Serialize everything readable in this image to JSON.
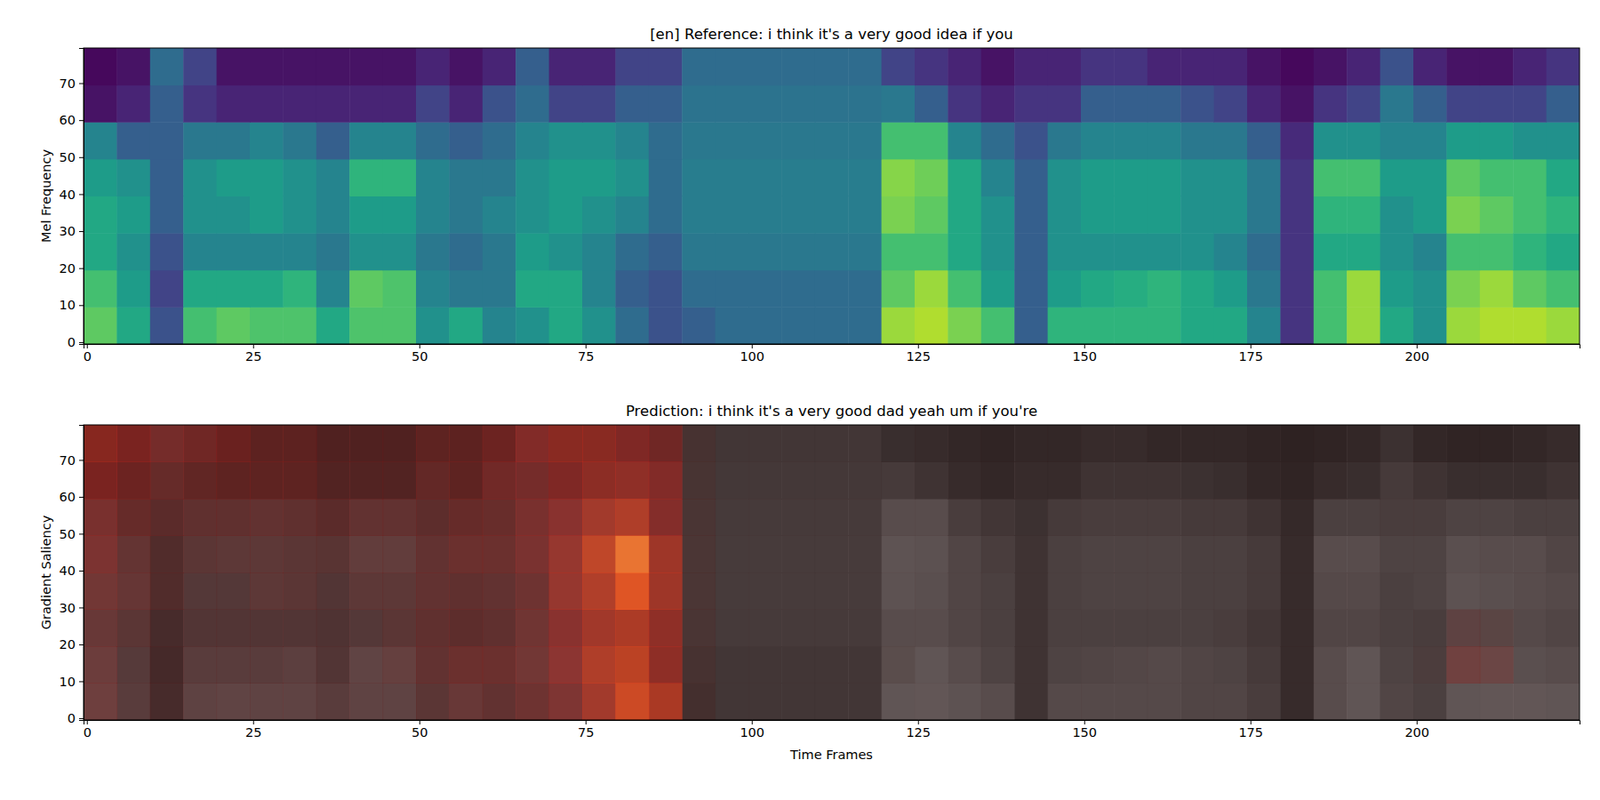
{
  "chart_data": [
    {
      "type": "heatmap",
      "title": "[en] Reference: i think it's a very good idea if you",
      "ylabel": "Mel Frequency",
      "color": "viridis",
      "xlim": [
        -0.5,
        224.5
      ],
      "ylim": [
        -0.5,
        79.5
      ],
      "xticks": [
        0,
        25,
        50,
        75,
        100,
        125,
        150,
        175,
        200
      ],
      "yticks": [
        0,
        10,
        20,
        30,
        40,
        50,
        60,
        70
      ],
      "zlim": [
        0,
        1
      ],
      "x_edges": [
        -0.5,
        4.5,
        9.5,
        14.5,
        19.5,
        24.5,
        29.5,
        34.5,
        39.5,
        44.5,
        49.5,
        54.5,
        59.5,
        64.5,
        69.5,
        74.5,
        79.5,
        84.5,
        89.5,
        94.5,
        99.5,
        104.5,
        109.5,
        114.5,
        119.5,
        124.5,
        129.5,
        134.5,
        139.5,
        144.5,
        149.5,
        154.5,
        159.5,
        164.5,
        169.5,
        174.5,
        179.5,
        184.5,
        189.5,
        194.5,
        199.5,
        204.5,
        209.5,
        214.5,
        219.5,
        224.5
      ],
      "y_edges": [
        -0.5,
        9.5,
        19.5,
        29.5,
        39.5,
        49.5,
        59.5,
        69.5,
        79.5
      ],
      "cells": [
        [
          0.75,
          0.6,
          0.25,
          0.7,
          0.75,
          0.72,
          0.72,
          0.6,
          0.72,
          0.72,
          0.5,
          0.6,
          0.45,
          0.5,
          0.6,
          0.5,
          0.35,
          0.25,
          0.3,
          0.35,
          0.35,
          0.35,
          0.35,
          0.35,
          0.85,
          0.88,
          0.8,
          0.7,
          0.3,
          0.65,
          0.65,
          0.65,
          0.65,
          0.6,
          0.6,
          0.45,
          0.15,
          0.7,
          0.85,
          0.6,
          0.5,
          0.85,
          0.88,
          0.88,
          0.85
        ],
        [
          0.7,
          0.55,
          0.2,
          0.6,
          0.6,
          0.6,
          0.65,
          0.45,
          0.75,
          0.72,
          0.45,
          0.4,
          0.4,
          0.6,
          0.6,
          0.45,
          0.3,
          0.25,
          0.35,
          0.35,
          0.35,
          0.35,
          0.35,
          0.35,
          0.75,
          0.85,
          0.7,
          0.55,
          0.3,
          0.55,
          0.6,
          0.62,
          0.65,
          0.6,
          0.55,
          0.4,
          0.15,
          0.7,
          0.85,
          0.55,
          0.5,
          0.8,
          0.85,
          0.75,
          0.7
        ],
        [
          0.6,
          0.5,
          0.25,
          0.45,
          0.45,
          0.45,
          0.45,
          0.4,
          0.5,
          0.5,
          0.4,
          0.35,
          0.4,
          0.55,
          0.5,
          0.45,
          0.35,
          0.3,
          0.4,
          0.4,
          0.4,
          0.4,
          0.4,
          0.4,
          0.7,
          0.7,
          0.6,
          0.5,
          0.3,
          0.5,
          0.5,
          0.5,
          0.5,
          0.5,
          0.45,
          0.35,
          0.15,
          0.6,
          0.6,
          0.5,
          0.45,
          0.7,
          0.7,
          0.65,
          0.6
        ],
        [
          0.6,
          0.55,
          0.3,
          0.5,
          0.5,
          0.55,
          0.5,
          0.45,
          0.55,
          0.55,
          0.45,
          0.4,
          0.45,
          0.5,
          0.55,
          0.5,
          0.45,
          0.35,
          0.42,
          0.42,
          0.42,
          0.42,
          0.42,
          0.42,
          0.8,
          0.75,
          0.6,
          0.5,
          0.3,
          0.5,
          0.55,
          0.55,
          0.55,
          0.5,
          0.5,
          0.4,
          0.15,
          0.65,
          0.65,
          0.5,
          0.55,
          0.8,
          0.75,
          0.7,
          0.65
        ],
        [
          0.55,
          0.5,
          0.3,
          0.5,
          0.55,
          0.55,
          0.5,
          0.45,
          0.65,
          0.65,
          0.45,
          0.4,
          0.4,
          0.5,
          0.55,
          0.55,
          0.5,
          0.35,
          0.42,
          0.42,
          0.42,
          0.42,
          0.42,
          0.42,
          0.82,
          0.78,
          0.6,
          0.45,
          0.3,
          0.5,
          0.55,
          0.55,
          0.55,
          0.5,
          0.5,
          0.4,
          0.15,
          0.7,
          0.7,
          0.55,
          0.55,
          0.75,
          0.7,
          0.7,
          0.6
        ],
        [
          0.45,
          0.3,
          0.3,
          0.4,
          0.4,
          0.45,
          0.4,
          0.3,
          0.45,
          0.45,
          0.35,
          0.3,
          0.35,
          0.45,
          0.5,
          0.5,
          0.45,
          0.35,
          0.4,
          0.4,
          0.4,
          0.4,
          0.4,
          0.4,
          0.7,
          0.7,
          0.45,
          0.35,
          0.25,
          0.4,
          0.45,
          0.45,
          0.45,
          0.4,
          0.4,
          0.3,
          0.12,
          0.5,
          0.5,
          0.45,
          0.45,
          0.55,
          0.55,
          0.5,
          0.5
        ],
        [
          0.05,
          0.1,
          0.3,
          0.15,
          0.1,
          0.1,
          0.1,
          0.1,
          0.1,
          0.1,
          0.2,
          0.1,
          0.25,
          0.35,
          0.2,
          0.2,
          0.3,
          0.3,
          0.38,
          0.38,
          0.38,
          0.38,
          0.38,
          0.38,
          0.4,
          0.3,
          0.15,
          0.1,
          0.15,
          0.15,
          0.3,
          0.3,
          0.3,
          0.25,
          0.2,
          0.1,
          0.05,
          0.15,
          0.2,
          0.4,
          0.3,
          0.2,
          0.2,
          0.2,
          0.3
        ],
        [
          0.02,
          0.05,
          0.35,
          0.2,
          0.05,
          0.05,
          0.05,
          0.05,
          0.05,
          0.05,
          0.1,
          0.05,
          0.1,
          0.3,
          0.1,
          0.1,
          0.2,
          0.2,
          0.35,
          0.35,
          0.35,
          0.35,
          0.35,
          0.35,
          0.2,
          0.15,
          0.1,
          0.05,
          0.1,
          0.1,
          0.15,
          0.15,
          0.1,
          0.1,
          0.1,
          0.05,
          0.02,
          0.05,
          0.1,
          0.25,
          0.1,
          0.05,
          0.05,
          0.1,
          0.15
        ]
      ]
    },
    {
      "type": "heatmap",
      "title": "Prediction: i think it's a very good dad yeah um if you're",
      "ylabel": "Gradient Saliency",
      "xlabel": "Time Frames",
      "color": "hot",
      "xlim": [
        -0.5,
        224.5
      ],
      "ylim": [
        -0.5,
        79.5
      ],
      "xticks": [
        0,
        25,
        50,
        75,
        100,
        125,
        150,
        175,
        200
      ],
      "yticks": [
        0,
        10,
        20,
        30,
        40,
        50,
        60,
        70
      ],
      "zlim": [
        0,
        1
      ],
      "x_edges": [
        -0.5,
        4.5,
        9.5,
        14.5,
        19.5,
        24.5,
        29.5,
        34.5,
        39.5,
        44.5,
        49.5,
        54.5,
        59.5,
        64.5,
        69.5,
        74.5,
        79.5,
        84.5,
        89.5,
        94.5,
        99.5,
        104.5,
        109.5,
        114.5,
        119.5,
        124.5,
        129.5,
        134.5,
        139.5,
        144.5,
        149.5,
        154.5,
        159.5,
        164.5,
        169.5,
        174.5,
        179.5,
        184.5,
        189.5,
        194.5,
        199.5,
        204.5,
        209.5,
        214.5,
        219.5,
        224.5
      ],
      "y_edges": [
        -0.5,
        9.5,
        19.5,
        29.5,
        39.5,
        49.5,
        59.5,
        69.5,
        79.5
      ],
      "cells": [
        [
          0.3,
          0.2,
          0.2,
          0.2,
          0.2,
          0.2,
          0.2,
          0.2,
          0.2,
          0.2,
          0.25,
          0.3,
          0.3,
          0.35,
          0.4,
          0.55,
          0.7,
          0.6,
          0.15,
          0.05,
          0.05,
          0.05,
          0.05,
          0.05,
          0.05,
          0.05,
          0.05,
          0.05,
          0.05,
          0.05,
          0.05,
          0.05,
          0.05,
          0.05,
          0.05,
          0.05,
          0.05,
          0.05,
          0.05,
          0.05,
          0.05,
          0.05,
          0.05,
          0.05,
          0.05
        ],
        [
          0.3,
          0.2,
          0.2,
          0.2,
          0.2,
          0.2,
          0.2,
          0.2,
          0.2,
          0.25,
          0.3,
          0.35,
          0.35,
          0.35,
          0.45,
          0.6,
          0.65,
          0.5,
          0.15,
          0.05,
          0.05,
          0.05,
          0.05,
          0.05,
          0.08,
          0.05,
          0.05,
          0.05,
          0.05,
          0.05,
          0.05,
          0.05,
          0.05,
          0.05,
          0.05,
          0.05,
          0.05,
          0.05,
          0.05,
          0.05,
          0.1,
          0.3,
          0.25,
          0.05,
          0.05
        ],
        [
          0.3,
          0.25,
          0.2,
          0.2,
          0.2,
          0.2,
          0.2,
          0.2,
          0.2,
          0.25,
          0.3,
          0.3,
          0.3,
          0.35,
          0.45,
          0.55,
          0.6,
          0.5,
          0.15,
          0.05,
          0.05,
          0.05,
          0.05,
          0.05,
          0.05,
          0.05,
          0.05,
          0.05,
          0.05,
          0.05,
          0.05,
          0.05,
          0.05,
          0.05,
          0.05,
          0.05,
          0.05,
          0.05,
          0.05,
          0.05,
          0.05,
          0.2,
          0.15,
          0.05,
          0.05
        ],
        [
          0.35,
          0.3,
          0.25,
          0.2,
          0.2,
          0.25,
          0.25,
          0.2,
          0.25,
          0.25,
          0.3,
          0.3,
          0.3,
          0.35,
          0.5,
          0.6,
          0.75,
          0.55,
          0.15,
          0.05,
          0.05,
          0.05,
          0.05,
          0.05,
          0.05,
          0.05,
          0.05,
          0.05,
          0.05,
          0.05,
          0.05,
          0.05,
          0.05,
          0.05,
          0.05,
          0.05,
          0.05,
          0.05,
          0.05,
          0.05,
          0.05,
          0.05,
          0.05,
          0.05,
          0.05
        ],
        [
          0.4,
          0.3,
          0.25,
          0.25,
          0.25,
          0.25,
          0.25,
          0.25,
          0.25,
          0.25,
          0.3,
          0.35,
          0.35,
          0.4,
          0.5,
          0.65,
          0.8,
          0.55,
          0.15,
          0.05,
          0.05,
          0.05,
          0.05,
          0.05,
          0.05,
          0.05,
          0.05,
          0.05,
          0.05,
          0.05,
          0.05,
          0.05,
          0.05,
          0.05,
          0.05,
          0.05,
          0.05,
          0.05,
          0.05,
          0.05,
          0.05,
          0.05,
          0.05,
          0.05,
          0.05
        ],
        [
          0.4,
          0.35,
          0.3,
          0.3,
          0.3,
          0.3,
          0.3,
          0.3,
          0.3,
          0.3,
          0.3,
          0.35,
          0.35,
          0.4,
          0.45,
          0.55,
          0.6,
          0.45,
          0.15,
          0.05,
          0.05,
          0.05,
          0.05,
          0.05,
          0.05,
          0.05,
          0.05,
          0.05,
          0.05,
          0.05,
          0.05,
          0.05,
          0.05,
          0.05,
          0.05,
          0.05,
          0.05,
          0.05,
          0.05,
          0.05,
          0.05,
          0.05,
          0.05,
          0.05,
          0.05
        ],
        [
          0.45,
          0.4,
          0.35,
          0.35,
          0.35,
          0.35,
          0.35,
          0.3,
          0.3,
          0.3,
          0.35,
          0.35,
          0.4,
          0.4,
          0.45,
          0.5,
          0.5,
          0.45,
          0.15,
          0.05,
          0.05,
          0.05,
          0.05,
          0.05,
          0.05,
          0.05,
          0.05,
          0.05,
          0.05,
          0.05,
          0.05,
          0.05,
          0.05,
          0.05,
          0.05,
          0.05,
          0.05,
          0.05,
          0.05,
          0.05,
          0.05,
          0.05,
          0.05,
          0.05,
          0.05
        ],
        [
          0.5,
          0.45,
          0.4,
          0.4,
          0.4,
          0.35,
          0.35,
          0.3,
          0.3,
          0.3,
          0.35,
          0.35,
          0.4,
          0.45,
          0.5,
          0.5,
          0.45,
          0.4,
          0.15,
          0.05,
          0.05,
          0.05,
          0.05,
          0.05,
          0.05,
          0.05,
          0.05,
          0.05,
          0.05,
          0.05,
          0.05,
          0.05,
          0.05,
          0.05,
          0.05,
          0.05,
          0.05,
          0.05,
          0.05,
          0.05,
          0.05,
          0.05,
          0.05,
          0.05,
          0.05
        ]
      ]
    }
  ]
}
